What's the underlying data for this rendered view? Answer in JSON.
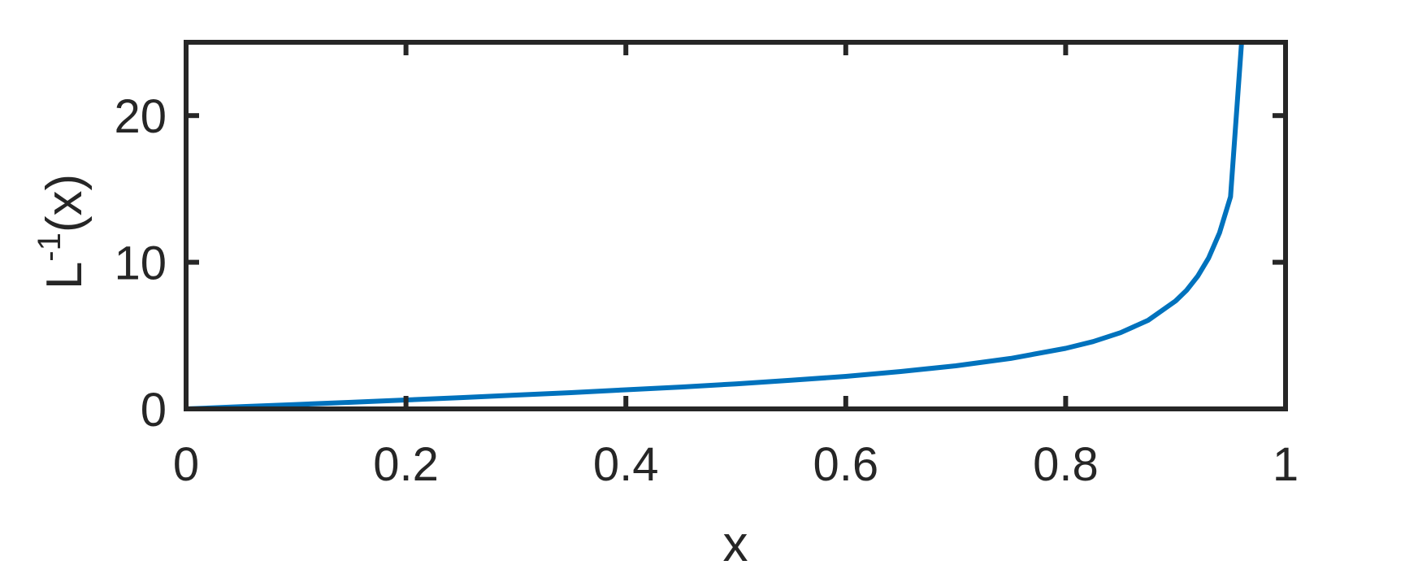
{
  "chart_data": {
    "type": "line",
    "title": "",
    "xlabel": "x",
    "ylabel": {
      "base": "L",
      "superscript": "-1",
      "suffix": "(x)"
    },
    "xlim": [
      0,
      1
    ],
    "ylim": [
      0,
      25
    ],
    "xticks": [
      0,
      0.2,
      0.4,
      0.6,
      0.8,
      1
    ],
    "xtick_labels": [
      "0",
      "0.2",
      "0.4",
      "0.6",
      "0.8",
      "1"
    ],
    "yticks": [
      0,
      10,
      20
    ],
    "ytick_labels": [
      "0",
      "10",
      "20"
    ],
    "grid": false,
    "legend": "none",
    "series": [
      {
        "color": "#0072BD",
        "x": [
          0,
          0.05,
          0.1,
          0.15,
          0.2,
          0.25,
          0.3,
          0.35,
          0.4,
          0.45,
          0.5,
          0.55,
          0.6,
          0.65,
          0.7,
          0.75,
          0.8,
          0.825,
          0.85,
          0.875,
          0.9,
          0.91,
          0.92,
          0.93,
          0.94,
          0.95,
          0.96
        ],
        "y": [
          0,
          0.15,
          0.3,
          0.45,
          0.61,
          0.77,
          0.94,
          1.11,
          1.3,
          1.49,
          1.71,
          1.95,
          2.22,
          2.55,
          2.94,
          3.44,
          4.13,
          4.59,
          5.2,
          6.04,
          7.36,
          8.09,
          9.04,
          10.29,
          12.01,
          14.47,
          25
        ]
      }
    ]
  },
  "style": {
    "axis_color": "#262626",
    "line_color": "#0072BD",
    "background": "#ffffff"
  }
}
